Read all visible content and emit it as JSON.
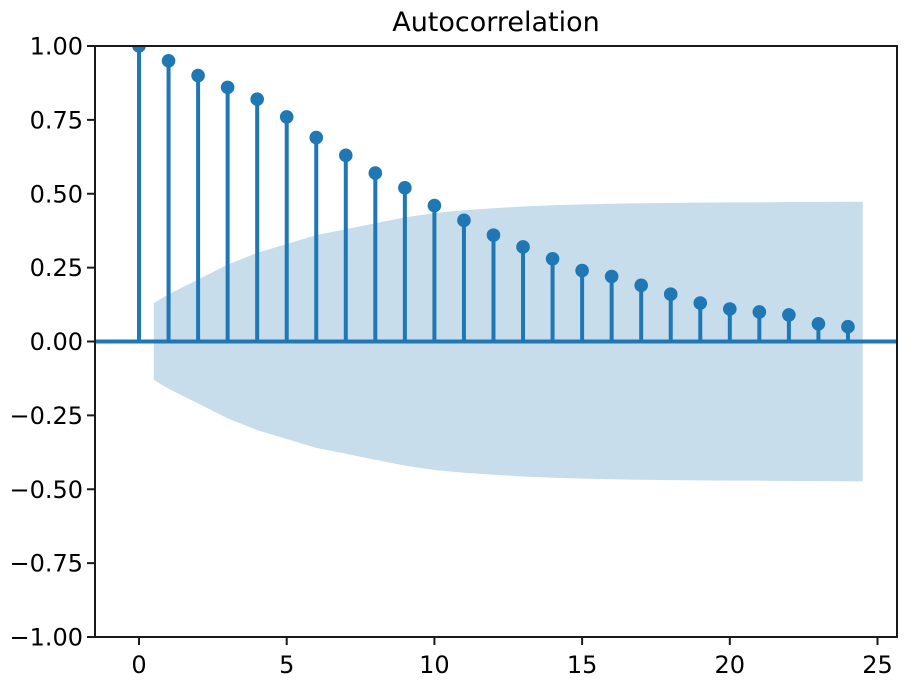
{
  "chart_data": {
    "type": "stem",
    "title": "Autocorrelation",
    "xlabel": "",
    "ylabel": "",
    "grid": false,
    "legend": false,
    "xlim": [
      -1.49,
      25.66
    ],
    "ylim": [
      -1.0,
      1.0
    ],
    "lags": [
      0,
      1,
      2,
      3,
      4,
      5,
      6,
      7,
      8,
      9,
      10,
      11,
      12,
      13,
      14,
      15,
      16,
      17,
      18,
      19,
      20,
      21,
      22,
      23,
      24
    ],
    "acf_values": [
      1.0,
      0.95,
      0.9,
      0.86,
      0.82,
      0.76,
      0.69,
      0.63,
      0.57,
      0.52,
      0.46,
      0.41,
      0.36,
      0.32,
      0.28,
      0.24,
      0.22,
      0.19,
      0.16,
      0.13,
      0.11,
      0.1,
      0.09,
      0.06,
      0.05
    ],
    "zero_line": 0.0,
    "confidence_band": {
      "x": [
        0.5,
        1,
        2,
        3,
        4,
        5,
        6,
        7,
        8,
        9,
        10,
        11,
        12,
        13,
        14,
        15,
        16,
        17,
        18,
        19,
        20,
        21,
        22,
        23,
        24,
        24.5
      ],
      "upper": [
        0.13,
        0.16,
        0.21,
        0.26,
        0.3,
        0.33,
        0.36,
        0.38,
        0.4,
        0.42,
        0.435,
        0.444,
        0.451,
        0.457,
        0.461,
        0.464,
        0.466,
        0.468,
        0.469,
        0.47,
        0.471,
        0.471,
        0.472,
        0.472,
        0.473,
        0.473
      ],
      "lower": [
        -0.13,
        -0.16,
        -0.21,
        -0.26,
        -0.3,
        -0.33,
        -0.36,
        -0.38,
        -0.4,
        -0.42,
        -0.435,
        -0.444,
        -0.451,
        -0.457,
        -0.461,
        -0.464,
        -0.466,
        -0.468,
        -0.469,
        -0.47,
        -0.471,
        -0.471,
        -0.472,
        -0.472,
        -0.473,
        -0.473
      ]
    },
    "x_ticks": [
      0,
      5,
      10,
      15,
      20,
      25
    ],
    "x_tick_labels": [
      "0",
      "5",
      "10",
      "15",
      "20",
      "25"
    ],
    "y_ticks": [
      1.0,
      0.75,
      0.5,
      0.25,
      0.0,
      -0.25,
      -0.5,
      -0.75,
      -1.0
    ],
    "y_tick_labels": [
      "1.00",
      "0.75",
      "0.50",
      "0.25",
      "0.00",
      "−0.25",
      "−0.50",
      "−0.75",
      "−1.00"
    ],
    "colors": {
      "accent": "#1f77b4",
      "band_fill": "#1f77b4",
      "band_opacity": "0.25",
      "spine": "#1a1a1a",
      "tick": "#1a1a1a",
      "text": "#000000",
      "background": "#ffffff"
    }
  }
}
